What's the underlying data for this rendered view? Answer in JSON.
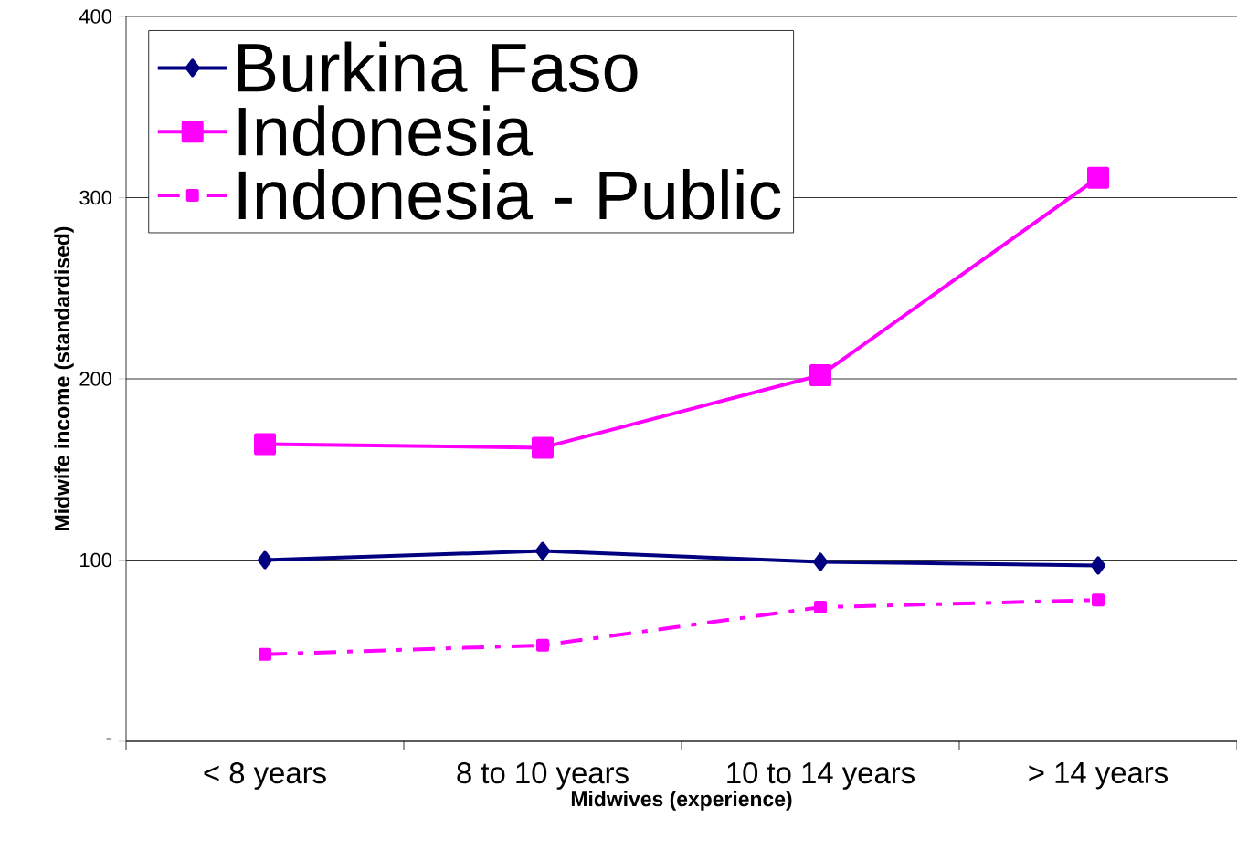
{
  "chart_data": {
    "type": "line",
    "xlabel": "Midwives (experience)",
    "ylabel": "Midwife income (standardised)",
    "categories": [
      "< 8  years",
      "8 to 10 years",
      "10 to 14 years",
      "> 14 years"
    ],
    "series": [
      {
        "name": "Burkina Faso",
        "color": "#000080",
        "values": [
          100,
          105,
          99,
          97
        ],
        "marker": "diamond",
        "line_style": "solid"
      },
      {
        "name": "Indonesia",
        "color": "#ff00ff",
        "values": [
          164,
          162,
          202,
          311
        ],
        "marker": "square",
        "line_style": "solid"
      },
      {
        "name": "Indonesia - Public",
        "color": "#ff00ff",
        "values": [
          48,
          53,
          74,
          78
        ],
        "marker": "square",
        "line_style": "dashed"
      }
    ],
    "ylim": [
      0,
      400
    ],
    "yticks": [
      {
        "value": 0,
        "label": "-"
      },
      100,
      200,
      300,
      400
    ],
    "grid": "y",
    "legend": "top left"
  }
}
